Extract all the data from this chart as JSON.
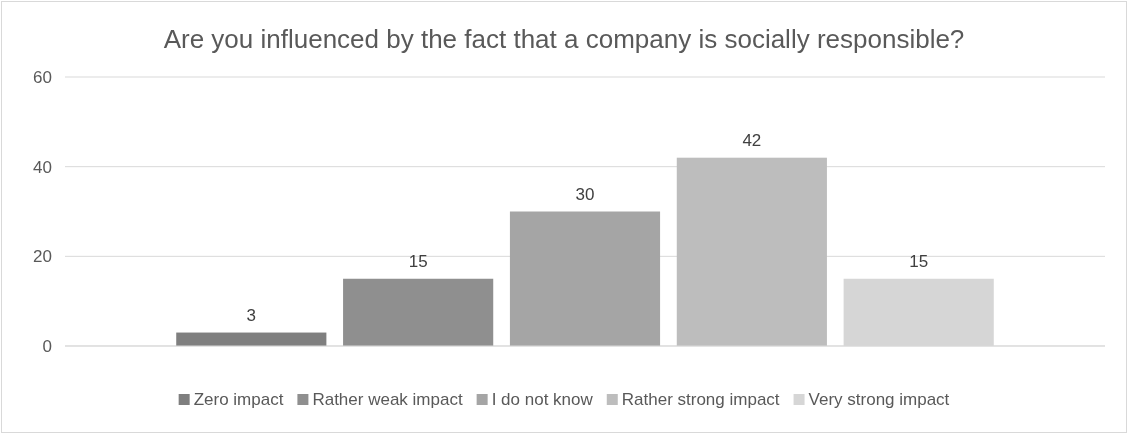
{
  "chart_data": {
    "type": "bar",
    "title": "Are you influenced by the fact that a company is socially responsible?",
    "categories": [
      null
    ],
    "series": [
      {
        "name": "Zero impact",
        "color": "#7f7f7f",
        "values": [
          3
        ]
      },
      {
        "name": "Rather weak impact",
        "color": "#8f8f8f",
        "values": [
          15
        ]
      },
      {
        "name": "I do not know",
        "color": "#a5a5a5",
        "values": [
          30
        ]
      },
      {
        "name": "Rather strong impact",
        "color": "#bdbdbd",
        "values": [
          42
        ]
      },
      {
        "name": "Very strong impact",
        "color": "#d6d6d6",
        "values": [
          15
        ]
      }
    ],
    "ylim": [
      0,
      60
    ],
    "yticks": [
      0,
      20,
      40,
      60
    ],
    "grid": "y",
    "legend": "bottom",
    "data_labels": true
  }
}
